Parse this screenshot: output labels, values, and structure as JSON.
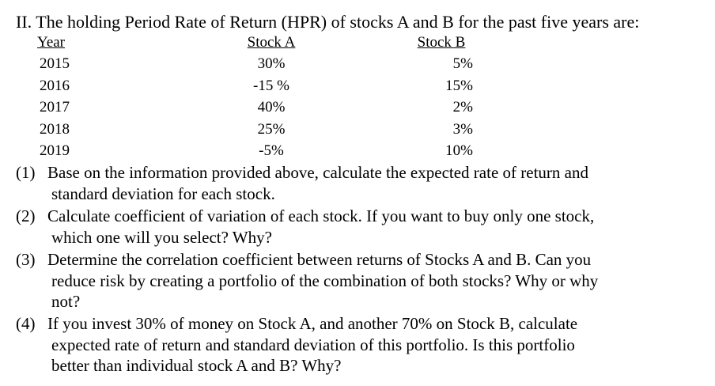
{
  "heading": "II. The holding Period Rate of Return (HPR) of stocks A and B for the past five years are:",
  "table": {
    "headers": [
      "Year",
      "Stock A",
      "Stock B"
    ],
    "rows": [
      [
        "2015",
        "30%",
        "5%"
      ],
      [
        "2016",
        "-15 %",
        "15%"
      ],
      [
        "2017",
        "40%",
        "2%"
      ],
      [
        "2018",
        "25%",
        "3%"
      ],
      [
        "2019",
        "-5%",
        "10%"
      ]
    ]
  },
  "questions": [
    {
      "number": "(1)",
      "lines": [
        "Base on the information provided above, calculate the expected rate of return and",
        "standard deviation for each stock."
      ]
    },
    {
      "number": "(2)",
      "lines": [
        "Calculate coefficient of variation of each stock.  If you want to buy only one stock,",
        "which one will you select?  Why?"
      ]
    },
    {
      "number": "(3)",
      "lines": [
        "Determine the correlation coefficient between returns of Stocks A and B.  Can you",
        "reduce risk by creating a portfolio of the combination of both stocks?  Why or why",
        "not?"
      ]
    },
    {
      "number": "(4)",
      "lines": [
        "If you invest 30% of money on Stock A, and another 70% on Stock B, calculate",
        "expected rate of return and standard deviation of this portfolio.  Is this portfolio",
        "better than individual stock A and B? Why?"
      ]
    }
  ]
}
